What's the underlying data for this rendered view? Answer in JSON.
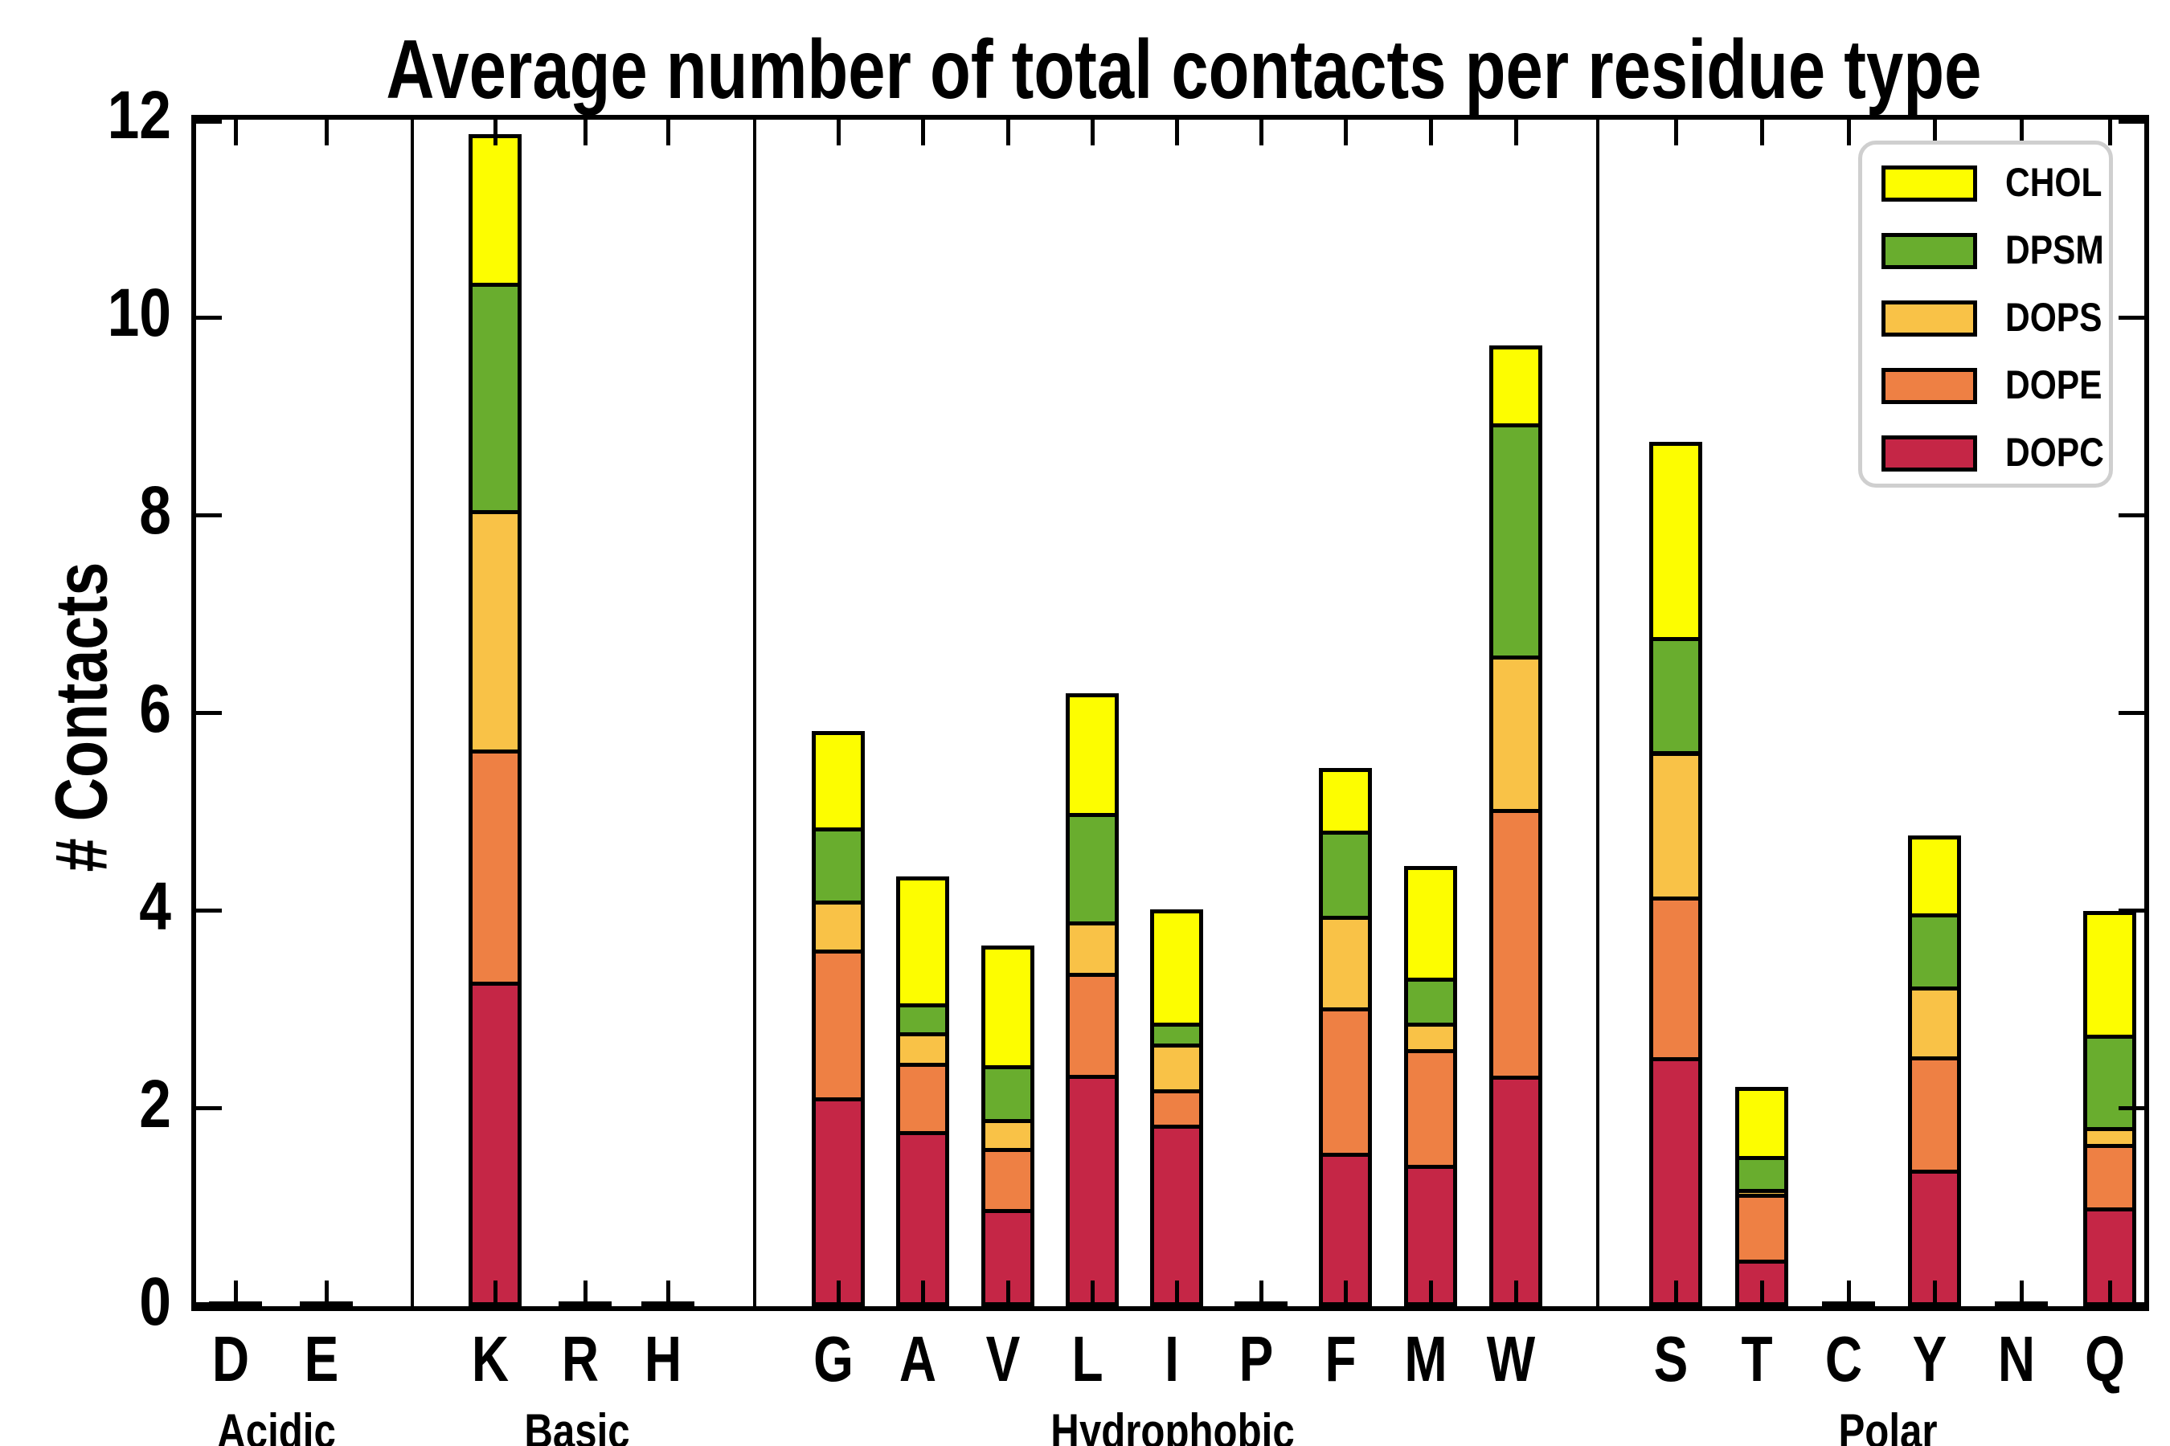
{
  "title": "Average number of total contacts per residue type",
  "ylabel": "# Contacts",
  "legend": {
    "entries": [
      {
        "label": "CHOL",
        "color": "#FDFD00"
      },
      {
        "label": "DPSM",
        "color": "#69AD2E"
      },
      {
        "label": "DOPS",
        "color": "#F9C247"
      },
      {
        "label": "DOPE",
        "color": "#EE8044"
      },
      {
        "label": "DOPC",
        "color": "#C52646"
      }
    ]
  },
  "chart_data": {
    "type": "bar",
    "stacked": true,
    "title": "Average number of total contacts per residue type",
    "xlabel": "",
    "ylabel": "# Contacts",
    "ylim": [
      0,
      12
    ],
    "yticks": [
      0,
      2,
      4,
      6,
      8,
      10,
      12
    ],
    "grid": false,
    "legend_position": "upper right",
    "groups": [
      {
        "name": "Acidic",
        "residues": [
          "D",
          "E"
        ]
      },
      {
        "name": "Basic",
        "residues": [
          "K",
          "R",
          "H"
        ]
      },
      {
        "name": "Hydrophobic",
        "residues": [
          "G",
          "A",
          "V",
          "L",
          "I",
          "P",
          "F",
          "M",
          "W"
        ]
      },
      {
        "name": "Polar",
        "residues": [
          "S",
          "T",
          "C",
          "Y",
          "N",
          "Q"
        ]
      }
    ],
    "categories": [
      "D",
      "E",
      "K",
      "R",
      "H",
      "G",
      "A",
      "V",
      "L",
      "I",
      "P",
      "F",
      "M",
      "W",
      "S",
      "T",
      "C",
      "Y",
      "N",
      "Q"
    ],
    "series": [
      {
        "name": "DOPC",
        "color": "#C52646",
        "values": [
          0.02,
          0.02,
          3.28,
          0.02,
          0.02,
          2.11,
          1.77,
          0.98,
          2.34,
          1.84,
          0.02,
          1.55,
          1.43,
          2.33,
          2.52,
          0.47,
          0.02,
          1.38,
          0.02,
          1.0
        ]
      },
      {
        "name": "DOPE",
        "color": "#EE8044",
        "values": [
          0,
          0,
          2.35,
          0,
          0,
          1.5,
          0.69,
          0.62,
          1.03,
          0.35,
          0,
          1.47,
          1.17,
          2.7,
          1.62,
          0.67,
          0,
          1.15,
          0,
          0.64
        ]
      },
      {
        "name": "DOPS",
        "color": "#F9C247",
        "values": [
          0,
          0,
          2.42,
          0,
          0,
          0.49,
          0.31,
          0.29,
          0.52,
          0.47,
          0,
          0.93,
          0.27,
          1.55,
          1.47,
          0.05,
          0,
          0.7,
          0,
          0.17
        ]
      },
      {
        "name": "DPSM",
        "color": "#69AD2E",
        "values": [
          0,
          0,
          2.3,
          0,
          0,
          0.74,
          0.29,
          0.55,
          1.1,
          0.21,
          0,
          0.86,
          0.45,
          2.35,
          1.16,
          0.33,
          0,
          0.74,
          0,
          0.94
        ]
      },
      {
        "name": "CHOL",
        "color": "#FDFD00",
        "values": [
          0,
          0,
          1.5,
          0,
          0,
          0.98,
          1.29,
          1.21,
          1.21,
          1.14,
          0,
          0.63,
          1.13,
          0.79,
          1.97,
          0.7,
          0,
          0.79,
          0,
          1.25
        ]
      }
    ],
    "totals": [
      0.02,
      0.02,
      11.85,
      0.02,
      0.02,
      5.82,
      4.35,
      3.65,
      6.2,
      4.01,
      0.02,
      5.44,
      4.45,
      9.72,
      8.74,
      2.22,
      0.02,
      4.76,
      0.02,
      4.0
    ]
  }
}
